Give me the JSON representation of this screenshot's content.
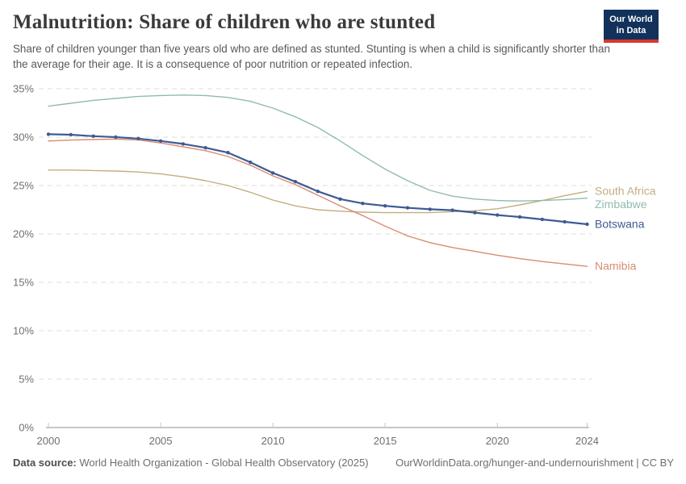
{
  "header": {
    "title": "Malnutrition: Share of children who are stunted",
    "subtitle": "Share of children younger than five years old who are defined as stunted. Stunting is when a child is significantly shorter than the average for their age. It is a consequence of poor nutrition or repeated infection.",
    "logo": {
      "line1": "Our World",
      "line2": "in Data",
      "bg_color": "#12325c",
      "accent_color": "#d7372e"
    }
  },
  "chart_data": {
    "type": "line",
    "title": "Malnutrition: Share of children who are stunted",
    "xlabel": "",
    "ylabel": "",
    "xlim": [
      2000,
      2024
    ],
    "ylim": [
      0,
      35
    ],
    "yticks": [
      0,
      5,
      10,
      15,
      20,
      25,
      30,
      35
    ],
    "ytick_suffix": "%",
    "xticks": [
      2000,
      2005,
      2010,
      2015,
      2020,
      2024
    ],
    "grid": "horizontal-dashed",
    "legend_position": "end-of-line-labels",
    "x": [
      2000,
      2001,
      2002,
      2003,
      2004,
      2005,
      2006,
      2007,
      2008,
      2009,
      2010,
      2011,
      2012,
      2013,
      2014,
      2015,
      2016,
      2017,
      2018,
      2019,
      2020,
      2021,
      2022,
      2023,
      2024
    ],
    "series": [
      {
        "name": "South Africa",
        "color": "#c4ad80",
        "emphasis": false,
        "values": [
          26.6,
          26.6,
          26.55,
          26.5,
          26.4,
          26.2,
          25.9,
          25.5,
          25.0,
          24.3,
          23.5,
          22.9,
          22.5,
          22.35,
          22.25,
          22.2,
          22.2,
          22.2,
          22.3,
          22.4,
          22.6,
          23.0,
          23.45,
          23.95,
          24.4
        ]
      },
      {
        "name": "Zimbabwe",
        "color": "#8fbcad",
        "emphasis": false,
        "values": [
          33.2,
          33.5,
          33.8,
          34.0,
          34.2,
          34.3,
          34.35,
          34.3,
          34.1,
          33.7,
          33.0,
          32.1,
          31.0,
          29.6,
          28.1,
          26.7,
          25.5,
          24.5,
          23.9,
          23.6,
          23.45,
          23.4,
          23.45,
          23.55,
          23.7
        ]
      },
      {
        "name": "Botswana",
        "color": "#3e5b92",
        "emphasis": true,
        "values": [
          30.3,
          30.25,
          30.1,
          30.0,
          29.85,
          29.6,
          29.3,
          28.9,
          28.4,
          27.4,
          26.3,
          25.4,
          24.4,
          23.6,
          23.15,
          22.9,
          22.7,
          22.55,
          22.45,
          22.2,
          21.95,
          21.75,
          21.5,
          21.25,
          21.0
        ]
      },
      {
        "name": "Namibia",
        "color": "#d88c71",
        "emphasis": false,
        "values": [
          29.6,
          29.7,
          29.75,
          29.8,
          29.7,
          29.4,
          29.0,
          28.6,
          28.0,
          27.1,
          26.0,
          25.1,
          24.0,
          22.9,
          21.9,
          20.8,
          19.8,
          19.1,
          18.6,
          18.2,
          17.8,
          17.45,
          17.15,
          16.9,
          16.65
        ]
      }
    ]
  },
  "footer": {
    "datasource_label": "Data source:",
    "datasource_text": "World Health Organization - Global Health Observatory (2025)",
    "link_text": "OurWorldinData.org/hunger-and-undernourishment | CC BY"
  }
}
